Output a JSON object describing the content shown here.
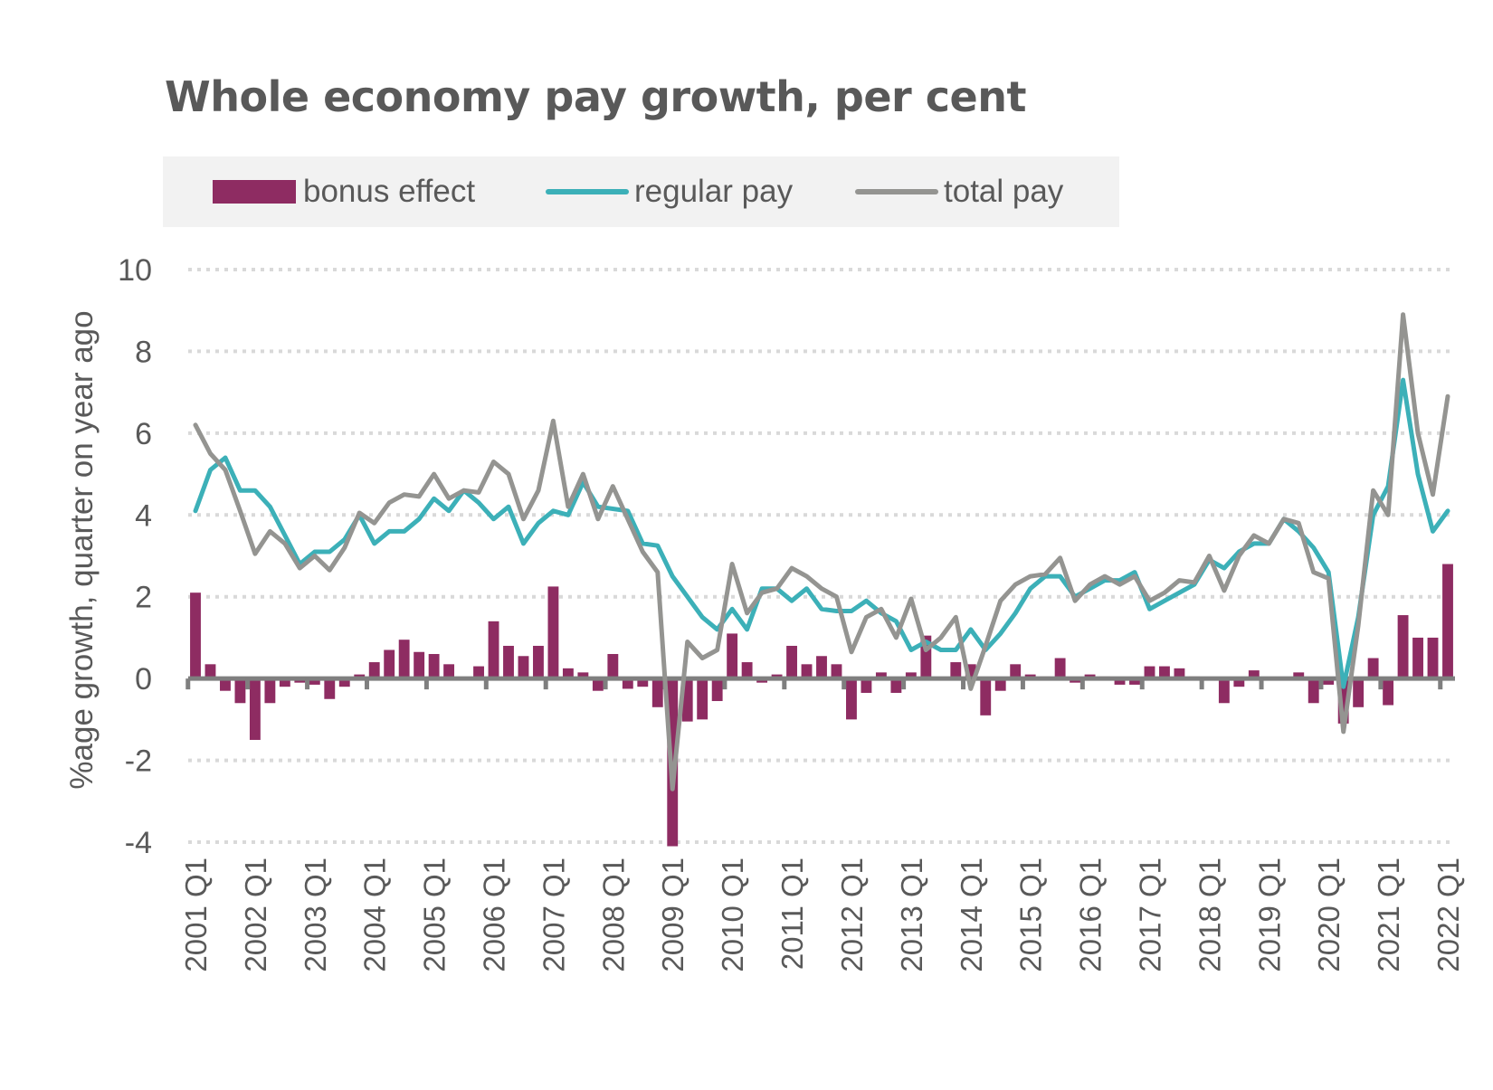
{
  "chart_data": {
    "type": "bar+line",
    "title": "Whole economy pay growth, per cent",
    "ylabel": "%age growth, quarter on year ago",
    "xlabel": "",
    "ylim": [
      -4,
      10
    ],
    "yticks": [
      10,
      8,
      6,
      4,
      2,
      0,
      -2,
      -4
    ],
    "grid": "horizontal dotted",
    "legend": "top",
    "start": "2001 Q1",
    "xtick_labels": [
      "2001 Q1",
      "2002 Q1",
      "2003 Q1",
      "2004 Q1",
      "2005 Q1",
      "2006 Q1",
      "2007 Q1",
      "2008 Q1",
      "2009 Q1",
      "2010 Q1",
      "2011 Q1",
      "2012 Q1",
      "2013 Q1",
      "2014 Q1",
      "2015 Q1",
      "2016 Q1",
      "2017 Q1",
      "2018 Q1",
      "2019 Q1",
      "2020 Q1",
      "2021 Q1",
      "2022 Q1"
    ],
    "series": [
      {
        "name": "bonus effect",
        "kind": "bar",
        "color": "#8e2c62",
        "values": [
          2.1,
          0.35,
          -0.3,
          -0.6,
          -1.5,
          -0.6,
          -0.2,
          -0.1,
          -0.15,
          -0.5,
          -0.2,
          0.1,
          0.4,
          0.7,
          0.95,
          0.65,
          0.6,
          0.35,
          0,
          0.3,
          1.4,
          0.8,
          0.55,
          0.8,
          2.25,
          0.25,
          0.15,
          -0.3,
          0.6,
          -0.25,
          -0.2,
          -0.7,
          -4.1,
          -1.05,
          -1.0,
          -0.55,
          1.1,
          0.4,
          -0.1,
          0.1,
          0.8,
          0.35,
          0.55,
          0.35,
          -1.0,
          -0.35,
          0.15,
          -0.35,
          0.15,
          1.05,
          0,
          0.4,
          0.35,
          -0.9,
          -0.3,
          0.35,
          0.1,
          0.05,
          0.5,
          -0.1,
          0.1,
          0.05,
          -0.15,
          -0.15,
          0.3,
          0.3,
          0.25,
          0.05,
          0,
          -0.6,
          -0.2,
          0.2,
          0,
          0,
          0.15,
          -0.6,
          -0.15,
          -1.1,
          -0.7,
          0.5,
          -0.65,
          1.55,
          1.0,
          1.0,
          2.8
        ]
      },
      {
        "name": "regular pay",
        "kind": "line",
        "color": "#3cb0b8",
        "values": [
          4.1,
          5.1,
          5.4,
          4.6,
          4.6,
          4.2,
          3.5,
          2.8,
          3.1,
          3.1,
          3.4,
          4.0,
          3.3,
          3.6,
          3.6,
          3.9,
          4.4,
          4.1,
          4.6,
          4.3,
          3.9,
          4.2,
          3.3,
          3.8,
          4.1,
          4.0,
          4.8,
          4.2,
          4.15,
          4.1,
          3.3,
          3.25,
          2.5,
          2.0,
          1.5,
          1.2,
          1.7,
          1.2,
          2.2,
          2.2,
          1.9,
          2.2,
          1.7,
          1.65,
          1.65,
          1.9,
          1.6,
          1.4,
          0.7,
          0.9,
          0.7,
          0.7,
          1.2,
          0.7,
          1.1,
          1.6,
          2.2,
          2.5,
          2.5,
          2.0,
          2.2,
          2.4,
          2.4,
          2.6,
          1.7,
          1.9,
          2.1,
          2.3,
          2.9,
          2.7,
          3.1,
          3.3,
          3.3,
          3.9,
          3.6,
          3.2,
          2.6,
          -0.2,
          1.5,
          4.0,
          4.7,
          7.3,
          5.0,
          3.6,
          4.1
        ]
      },
      {
        "name": "total pay",
        "kind": "line",
        "color": "#949491",
        "values": [
          6.2,
          5.5,
          5.1,
          4.1,
          3.05,
          3.6,
          3.3,
          2.7,
          3.0,
          2.65,
          3.2,
          4.05,
          3.8,
          4.3,
          4.5,
          4.45,
          5.0,
          4.4,
          4.6,
          4.55,
          5.3,
          5.0,
          3.9,
          4.6,
          6.3,
          4.2,
          5.0,
          3.9,
          4.7,
          3.9,
          3.1,
          2.6,
          -2.7,
          0.9,
          0.5,
          0.7,
          2.8,
          1.6,
          2.1,
          2.2,
          2.7,
          2.5,
          2.2,
          2.0,
          0.65,
          1.5,
          1.7,
          1.0,
          1.95,
          0.7,
          1.0,
          1.5,
          -0.25,
          0.8,
          1.9,
          2.3,
          2.5,
          2.55,
          2.95,
          1.9,
          2.3,
          2.5,
          2.3,
          2.5,
          1.9,
          2.1,
          2.4,
          2.35,
          3.0,
          2.15,
          3.0,
          3.5,
          3.3,
          3.9,
          3.8,
          2.6,
          2.45,
          -1.3,
          1.3,
          4.6,
          4.0,
          8.9,
          6.0,
          4.5,
          6.9
        ]
      }
    ]
  }
}
